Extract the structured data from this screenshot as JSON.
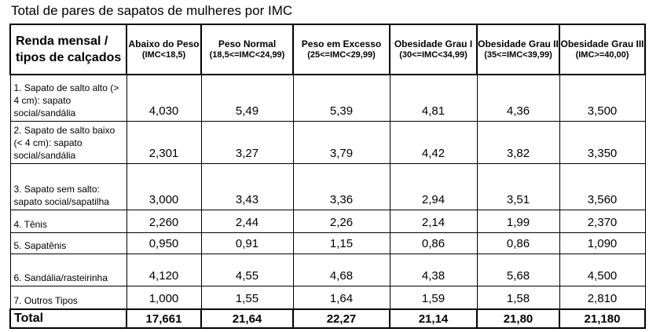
{
  "title": "Total de pares de sapatos de mulheres por IMC",
  "header": {
    "row_label": "Renda mensal / tipos de calçados",
    "columns": [
      {
        "name": "Abaixo do Peso",
        "sub": "(IMC<18,5)"
      },
      {
        "name": "Peso Normal",
        "sub": "(18,5<=IMC<24,99)"
      },
      {
        "name": "Peso em Excesso",
        "sub": "(25<=IMC<29,99)"
      },
      {
        "name": "Obesidade Grau I",
        "sub": "(30<=IMC<34,99)"
      },
      {
        "name": "Obesidade Grau II",
        "sub": "(35<=IMC<39,99)"
      },
      {
        "name": "Obesidade Grau III",
        "sub": "(IMC>=40,00)"
      }
    ]
  },
  "rows": [
    {
      "label": "1. Sapato de salto alto (> 4 cm): sapato social/sandália",
      "values": [
        "4,030",
        "5,49",
        "5,39",
        "4,81",
        "4,36",
        "3,500"
      ]
    },
    {
      "label": "2. Sapato de salto baixo (< 4 cm): sapato social/sandália",
      "values": [
        "2,301",
        "3,27",
        "3,79",
        "4,42",
        "3,82",
        "3,350"
      ]
    },
    {
      "label": "3. Sapato sem salto: sapato social/sapatilha",
      "values": [
        "3,000",
        "3,43",
        "3,36",
        "2,94",
        "3,51",
        "3,560"
      ]
    },
    {
      "label": "4. Tênis",
      "values": [
        "2,260",
        "2,44",
        "2,26",
        "2,14",
        "1,99",
        "2,370"
      ]
    },
    {
      "label": "5. Sapatênis",
      "values": [
        "0,950",
        "0,91",
        "1,15",
        "0,86",
        "0,86",
        "1,090"
      ]
    },
    {
      "label": "6. Sandália/rasteirinha",
      "values": [
        "4,120",
        "4,55",
        "4,68",
        "4,38",
        "5,68",
        "4,500"
      ]
    },
    {
      "label": "7. Outros Tipos",
      "values": [
        "1,000",
        "1,55",
        "1,64",
        "1,59",
        "1,58",
        "2,810"
      ]
    }
  ],
  "total": {
    "label": "Total",
    "values": [
      "17,661",
      "21,64",
      "22,27",
      "21,14",
      "21,80",
      "21,180"
    ]
  }
}
